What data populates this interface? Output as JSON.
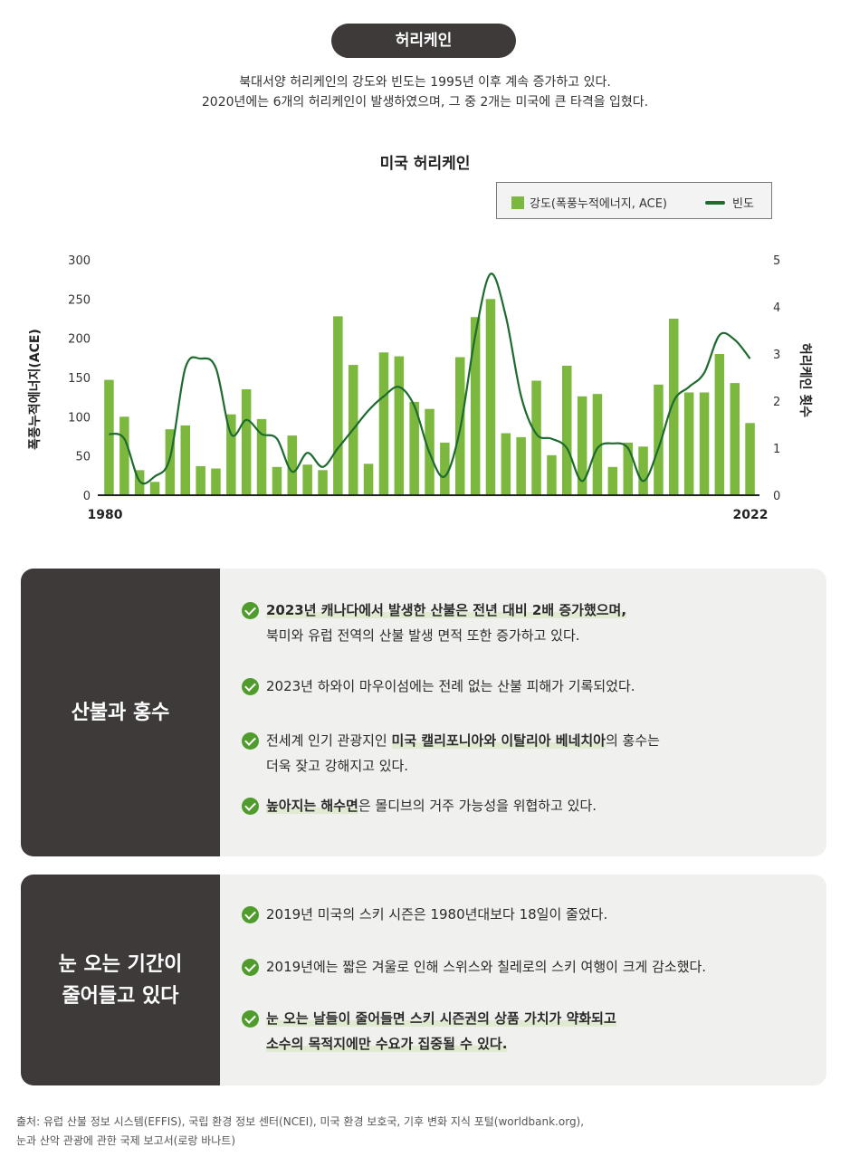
{
  "header": {
    "pill": "허리케인",
    "intro_line1": "북대서양 허리케인의 강도와 빈도는 1995년 이후 계속 증가하고 있다.",
    "intro_line2": "2020년에는 6개의 허리케인이 발생하였으며, 그 중 2개는 미국에 큰 타격을 입혔다."
  },
  "legend": {
    "bar": "강도(폭풍누적에너지, ACE)",
    "line": "빈도"
  },
  "chart_data": {
    "type": "bar",
    "title": "미국 허리케인",
    "ylabel": "폭풍누적에너지(ACE)",
    "y2label": "허리케인 횟수",
    "ylim": [
      0,
      300
    ],
    "y2lim": [
      0,
      5
    ],
    "yticks": [
      "0",
      "50",
      "100",
      "150",
      "200",
      "250",
      "300"
    ],
    "y2ticks": [
      "0",
      "1",
      "2",
      "3",
      "4",
      "5"
    ],
    "x_start_label": "1980",
    "x_end_label": "2022",
    "years": [
      1980,
      1981,
      1982,
      1983,
      1984,
      1985,
      1986,
      1987,
      1988,
      1989,
      1990,
      1991,
      1992,
      1993,
      1994,
      1995,
      1996,
      1997,
      1998,
      1999,
      2000,
      2001,
      2002,
      2003,
      2004,
      2005,
      2006,
      2007,
      2008,
      2009,
      2010,
      2011,
      2012,
      2013,
      2014,
      2015,
      2016,
      2017,
      2018,
      2019,
      2020,
      2021,
      2022
    ],
    "series": [
      {
        "name": "강도(폭풍누적에너지, ACE)",
        "values": [
          147,
          100,
          32,
          17,
          84,
          89,
          37,
          34,
          103,
          135,
          97,
          36,
          76,
          39,
          32,
          228,
          166,
          40,
          182,
          177,
          119,
          110,
          67,
          176,
          227,
          250,
          79,
          74,
          146,
          51,
          165,
          126,
          129,
          36,
          67,
          62,
          141,
          225,
          131,
          131,
          180,
          143,
          92
        ]
      },
      {
        "name": "빈도",
        "values": [
          1.3,
          1.2,
          0.3,
          0.4,
          0.8,
          2.7,
          2.9,
          2.7,
          1.3,
          1.6,
          1.3,
          1.2,
          0.5,
          0.9,
          0.6,
          1.0,
          1.4,
          1.8,
          2.1,
          2.3,
          1.9,
          0.9,
          0.4,
          1.4,
          3.4,
          4.7,
          3.8,
          2.1,
          1.3,
          1.2,
          1.0,
          0.3,
          1.0,
          1.1,
          1.0,
          0.3,
          1.0,
          2.0,
          2.3,
          2.6,
          3.4,
          3.3,
          2.9
        ]
      }
    ],
    "colors": {
      "bar": "#7cb83e",
      "line": "#1e6b2f"
    }
  },
  "panels": [
    {
      "title": "산불과 홍수",
      "bullets": [
        {
          "parts": [
            {
              "t": "2023년 캐나다에서 발생한 산불은 전년 대비 2배 증가했으며,",
              "h": true
            }
          ],
          "line2": "북미와 유럽 전역의 산불 발생 면적 또한 증가하고 있다."
        },
        {
          "parts": [
            {
              "t": "2023년 하와이 마우이섬에는 전례 없는 산불 피해가 기록되었다.",
              "h": false
            }
          ]
        },
        {
          "parts": [
            {
              "t": "전세계 인기 관광지인 ",
              "h": false
            },
            {
              "t": "미국 캘리포니아와 이탈리아 베네치아",
              "h": true
            },
            {
              "t": "의 홍수는",
              "h": false
            }
          ],
          "line2": "더욱 잦고 강해지고 있다."
        },
        {
          "parts": [
            {
              "t": "높아지는 해수면",
              "h": true
            },
            {
              "t": "은 몰디브의 거주 가능성을 위협하고 있다.",
              "h": false
            }
          ]
        }
      ]
    },
    {
      "title": "눈 오는 기간이\n줄어들고 있다",
      "bullets": [
        {
          "parts": [
            {
              "t": "2019년 미국의 스키 시즌은 1980년대보다 18일이 줄었다.",
              "h": false
            }
          ]
        },
        {
          "parts": [
            {
              "t": "2019년에는 짧은 겨울로 인해 스위스와 칠레로의 스키 여행이 크게 감소했다.",
              "h": false
            }
          ]
        },
        {
          "parts": [
            {
              "t": "눈 오는 날들이 줄어들면 스키 시즌권의 상품 가치가 약화되고",
              "h": true
            }
          ],
          "line2": "소수의 목적지에만 수요가 집중될 수 있다.",
          "line2_h": true
        }
      ]
    }
  ],
  "source": {
    "line1": "출처: 유럽 산불 정보 시스템(EFFIS), 국립 환경 정보 센터(NCEI), 미국 환경 보호국, 기후 변화 지식 포털(worldbank.org),",
    "line2": "눈과 산악 관광에 관한 국제 보고서(로랑 바나트)"
  }
}
